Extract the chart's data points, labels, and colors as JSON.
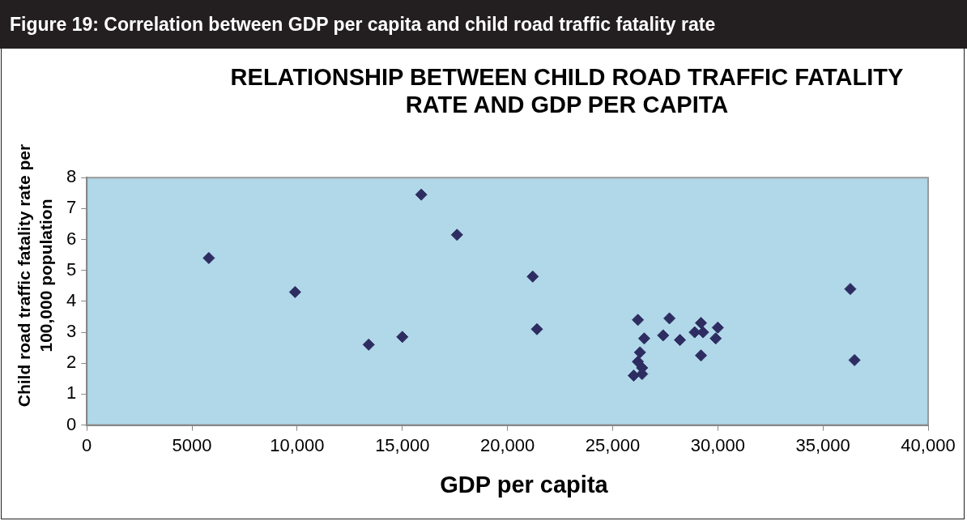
{
  "chart_data": {
    "type": "scatter",
    "title": "RELATIONSHIP BETWEEN CHILD ROAD TRAFFIC FATALITY RATE AND GDP PER CAPITA",
    "xlabel": "GDP per capita",
    "ylabel": "Child road traffic fatality rate per 100,000 population",
    "annotations": [
      "Figure 19:  Correlation between GDP per capita and child road traffic fatality rate"
    ],
    "x": [
      5800,
      9900,
      13400,
      15000,
      15900,
      17600,
      21200,
      21400,
      26000,
      26200,
      26200,
      26300,
      26400,
      26400,
      26500,
      27400,
      27700,
      28200,
      28900,
      29200,
      29200,
      29300,
      29900,
      30000,
      36300,
      36500
    ],
    "series": [
      {
        "color": "#2e2d62",
        "values": [
          5.4,
          4.3,
          2.6,
          2.85,
          7.45,
          6.15,
          4.8,
          3.1,
          1.6,
          3.4,
          2.05,
          2.35,
          1.85,
          1.65,
          2.8,
          2.9,
          3.45,
          2.75,
          3.0,
          3.3,
          2.25,
          3.0,
          2.8,
          3.15,
          4.4,
          2.1
        ]
      }
    ],
    "xlim": [
      0,
      40000
    ],
    "xticks": [
      0,
      5000,
      {
        "value": 10000,
        "label": "10,000"
      },
      {
        "value": 15000,
        "label": "15,000"
      },
      {
        "value": 20000,
        "label": "20,000"
      },
      {
        "value": 25000,
        "label": "25,000"
      },
      {
        "value": 30000,
        "label": "30,000"
      },
      {
        "value": 35000,
        "label": "35,000"
      },
      {
        "value": 40000,
        "label": "40,000"
      }
    ],
    "ylim": [
      0,
      8
    ],
    "yticks": [
      0,
      1,
      2,
      3,
      4,
      5,
      6,
      7,
      8
    ],
    "grid": false,
    "legend": false,
    "marker": "diamond"
  }
}
